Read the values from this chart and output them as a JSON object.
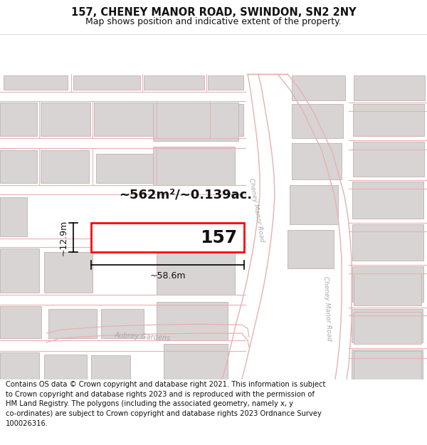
{
  "title_line1": "157, CHENEY MANOR ROAD, SWINDON, SN2 2NY",
  "title_line2": "Map shows position and indicative extent of the property.",
  "footer_text": "Contains OS data © Crown copyright and database right 2021. This information is subject\nto Crown copyright and database rights 2023 and is reproduced with the permission of\nHM Land Registry. The polygons (including the associated geometry, namely x, y\nco-ordinates) are subject to Crown copyright and database rights 2023 Ordnance Survey\n100026316.",
  "property_label": "157",
  "area_label": "~562m²/~0.139ac.",
  "width_label": "~58.6m",
  "height_label": "~12.9m",
  "road_label1": "Cheney Manor Road",
  "road_label2": "Cheney Manor Road",
  "street_label": "Aubrey Gardens",
  "map_bg": "#ffffff",
  "road_line_color": "#e8b0b0",
  "bld_fill": "#d8d4d4",
  "bld_edge": "#c8b8b8",
  "prop_fill": "#ffffff",
  "prop_edge": "#ff0000",
  "prop_lw": 2.0,
  "dim_color": "#111111",
  "text_color": "#111111",
  "road_text_color": "#aaaaaa",
  "title_fontsize": 10.5,
  "subtitle_fontsize": 9.0,
  "area_fontsize": 13,
  "prop_label_fontsize": 18,
  "dim_fontsize": 9,
  "road_label_fontsize": 6.5,
  "street_label_fontsize": 7,
  "footer_fontsize": 7.2
}
